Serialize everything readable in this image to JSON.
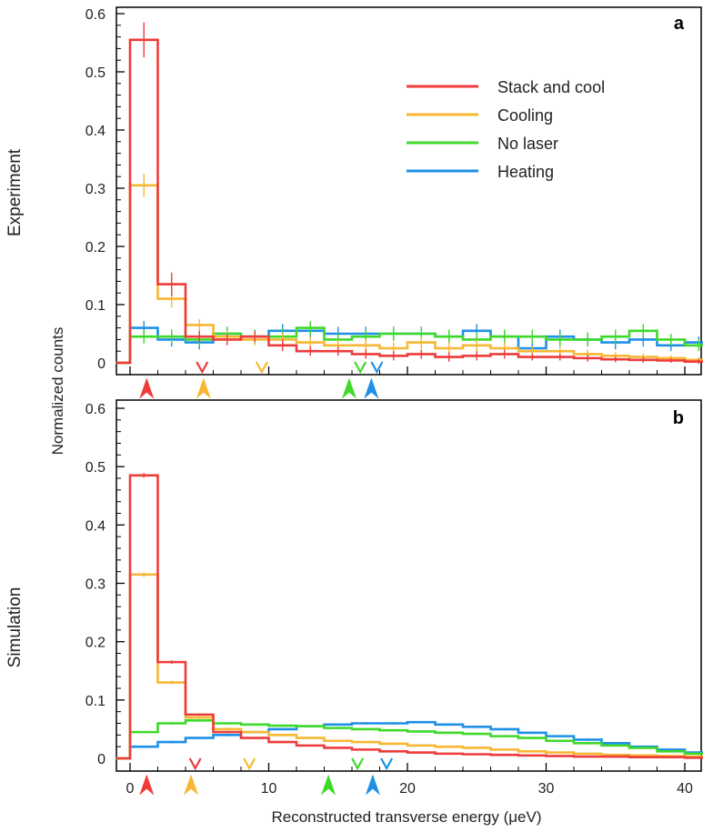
{
  "chart_data": {
    "type": "step",
    "ylabel": "Normalized counts",
    "xlabel": "Reconstructed transverse energy (μeV)",
    "bin_width": 2,
    "xlim": [
      -1,
      42
    ],
    "x_ticks": [
      0,
      10,
      20,
      30,
      40
    ],
    "x_tick_labels": [
      "0",
      "10",
      "20",
      "30",
      "40"
    ],
    "legend": {
      "placement": "top-right",
      "entries": [
        "Stack and cool",
        "Cooling",
        "No laser",
        "Heating"
      ]
    },
    "colors": {
      "Stack and cool": "#ee3b3b",
      "Cooling": "#f7b733",
      "No laser": "#3fd92b",
      "Heating": "#1e90e6"
    },
    "panels": [
      {
        "id": "a",
        "letter": "a",
        "side_label": "Experiment",
        "ylim": [
          -0.02,
          0.6
        ],
        "y_ticks": [
          0,
          0.1,
          0.2,
          0.3,
          0.4,
          0.5,
          0.6
        ],
        "y_tick_labels": [
          "0",
          "0.1",
          "0.2",
          "0.3",
          "0.4",
          "0.5",
          "0.6"
        ],
        "series": [
          {
            "name": "Stack and cool",
            "values": [
              0.555,
              0.135,
              0.045,
              0.04,
              0.045,
              0.03,
              0.02,
              0.02,
              0.015,
              0.012,
              0.015,
              0.01,
              0.012,
              0.015,
              0.01,
              0.01,
              0.008,
              0.006,
              0.005,
              0.004,
              0.002
            ],
            "error_bars": [
              0.03,
              0.02,
              0.01,
              0.01,
              0.01,
              0.01,
              0.008,
              0.008,
              0.008,
              0.008,
              0.008,
              0.008,
              0.008,
              0.008,
              0.006,
              0.006,
              0.006,
              0.005,
              0.005,
              0.004,
              0.004
            ]
          },
          {
            "name": "Cooling",
            "values": [
              0.305,
              0.11,
              0.065,
              0.045,
              0.04,
              0.04,
              0.035,
              0.03,
              0.03,
              0.025,
              0.035,
              0.025,
              0.03,
              0.025,
              0.02,
              0.02,
              0.015,
              0.012,
              0.01,
              0.008,
              0.005
            ],
            "error_bars": [
              0.02,
              0.015,
              0.01,
              0.01,
              0.01,
              0.01,
              0.01,
              0.01,
              0.01,
              0.01,
              0.01,
              0.01,
              0.01,
              0.01,
              0.008,
              0.008,
              0.008,
              0.006,
              0.006,
              0.005,
              0.005
            ]
          },
          {
            "name": "No laser",
            "values": [
              0.045,
              0.045,
              0.04,
              0.05,
              0.045,
              0.045,
              0.06,
              0.04,
              0.045,
              0.05,
              0.05,
              0.045,
              0.04,
              0.045,
              0.045,
              0.04,
              0.04,
              0.045,
              0.055,
              0.04,
              0.03
            ],
            "error_bars": [
              0.012,
              0.012,
              0.012,
              0.012,
              0.012,
              0.012,
              0.012,
              0.012,
              0.012,
              0.012,
              0.012,
              0.012,
              0.012,
              0.012,
              0.012,
              0.012,
              0.012,
              0.012,
              0.012,
              0.01,
              0.01
            ]
          },
          {
            "name": "Heating",
            "values": [
              0.06,
              0.04,
              0.035,
              0.05,
              0.045,
              0.055,
              0.055,
              0.05,
              0.05,
              0.05,
              0.05,
              0.045,
              0.055,
              0.045,
              0.025,
              0.045,
              0.04,
              0.035,
              0.04,
              0.03,
              0.035
            ],
            "error_bars": [
              0.012,
              0.012,
              0.012,
              0.012,
              0.012,
              0.012,
              0.012,
              0.012,
              0.012,
              0.012,
              0.012,
              0.012,
              0.012,
              0.012,
              0.012,
              0.012,
              0.012,
              0.012,
              0.012,
              0.01,
              0.01
            ]
          }
        ],
        "markers_up": [
          {
            "series": "Stack and cool",
            "x": 1.2
          },
          {
            "series": "Cooling",
            "x": 5.3
          },
          {
            "series": "No laser",
            "x": 15.8
          },
          {
            "series": "Heating",
            "x": 17.4
          }
        ],
        "markers_down": [
          {
            "series": "Stack and cool",
            "x": 5.2
          },
          {
            "series": "Cooling",
            "x": 9.5
          },
          {
            "series": "No laser",
            "x": 16.6
          },
          {
            "series": "Heating",
            "x": 17.8
          }
        ]
      },
      {
        "id": "b",
        "letter": "b",
        "side_label": "Simulation",
        "ylim": [
          -0.02,
          0.6
        ],
        "y_ticks": [
          0,
          0.1,
          0.2,
          0.3,
          0.4,
          0.5,
          0.6
        ],
        "y_tick_labels": [
          "0",
          "0.1",
          "0.2",
          "0.3",
          "0.4",
          "0.5",
          "0.6"
        ],
        "series": [
          {
            "name": "Stack and cool",
            "values": [
              0.485,
              0.165,
              0.075,
              0.045,
              0.035,
              0.028,
              0.022,
              0.018,
              0.015,
              0.012,
              0.01,
              0.008,
              0.007,
              0.006,
              0.005,
              0.004,
              0.003,
              0.003,
              0.002,
              0.002,
              0.001
            ],
            "error_bars": [
              0.004,
              0.003,
              0.002,
              0.002,
              0.002,
              0.002,
              0.001,
              0.001,
              0.001,
              0.001,
              0.001,
              0.001,
              0.001,
              0.001,
              0.001,
              0.001,
              0.001,
              0.001,
              0.001,
              0.001,
              0.001
            ]
          },
          {
            "name": "Cooling",
            "values": [
              0.315,
              0.13,
              0.07,
              0.05,
              0.045,
              0.04,
              0.035,
              0.03,
              0.028,
              0.025,
              0.022,
              0.02,
              0.018,
              0.015,
              0.012,
              0.01,
              0.008,
              0.006,
              0.005,
              0.004,
              0.003
            ],
            "error_bars": [
              0.004,
              0.003,
              0.002,
              0.002,
              0.002,
              0.002,
              0.001,
              0.001,
              0.001,
              0.001,
              0.001,
              0.001,
              0.001,
              0.001,
              0.001,
              0.001,
              0.001,
              0.001,
              0.001,
              0.001,
              0.001
            ]
          },
          {
            "name": "No laser",
            "values": [
              0.045,
              0.06,
              0.065,
              0.06,
              0.058,
              0.056,
              0.055,
              0.052,
              0.05,
              0.048,
              0.046,
              0.044,
              0.042,
              0.038,
              0.035,
              0.03,
              0.026,
              0.022,
              0.018,
              0.012,
              0.008
            ],
            "error_bars": [
              0.002,
              0.002,
              0.002,
              0.002,
              0.002,
              0.002,
              0.002,
              0.002,
              0.002,
              0.002,
              0.002,
              0.002,
              0.002,
              0.002,
              0.002,
              0.002,
              0.002,
              0.002,
              0.002,
              0.002,
              0.002
            ]
          },
          {
            "name": "Heating",
            "values": [
              0.02,
              0.028,
              0.035,
              0.04,
              0.045,
              0.05,
              0.055,
              0.058,
              0.06,
              0.06,
              0.062,
              0.058,
              0.054,
              0.05,
              0.044,
              0.038,
              0.032,
              0.026,
              0.02,
              0.015,
              0.01
            ],
            "error_bars": [
              0.002,
              0.002,
              0.002,
              0.002,
              0.002,
              0.002,
              0.002,
              0.002,
              0.002,
              0.002,
              0.002,
              0.002,
              0.002,
              0.002,
              0.002,
              0.002,
              0.002,
              0.002,
              0.002,
              0.002,
              0.002
            ]
          }
        ],
        "markers_up": [
          {
            "series": "Stack and cool",
            "x": 1.2
          },
          {
            "series": "Cooling",
            "x": 4.4
          },
          {
            "series": "No laser",
            "x": 14.3
          },
          {
            "series": "Heating",
            "x": 17.5
          }
        ],
        "markers_down": [
          {
            "series": "Stack and cool",
            "x": 4.7
          },
          {
            "series": "Cooling",
            "x": 8.6
          },
          {
            "series": "No laser",
            "x": 16.4
          },
          {
            "series": "Heating",
            "x": 18.5
          }
        ]
      }
    ]
  }
}
